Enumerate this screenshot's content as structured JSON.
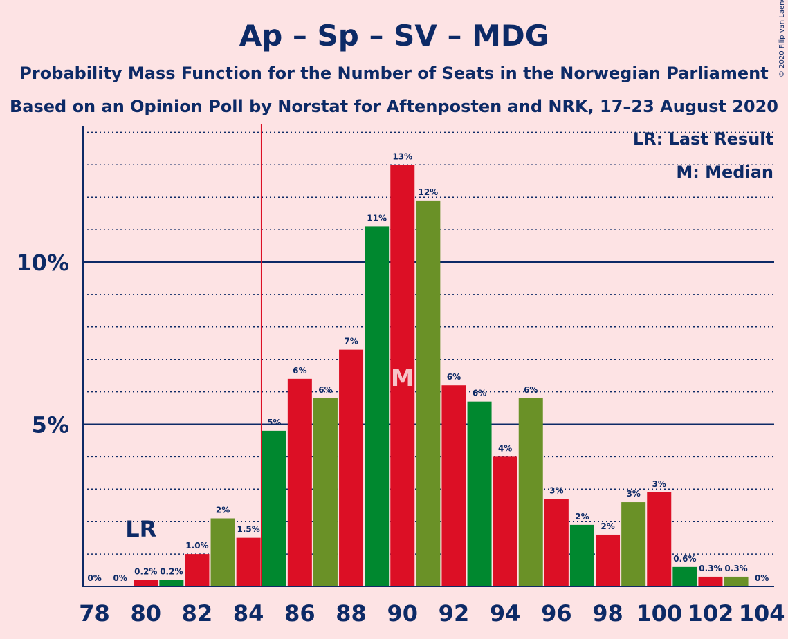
{
  "chart_data": {
    "type": "bar",
    "title": "Ap – Sp – SV – MDG",
    "subtitle1": "Probability Mass Function for the Number of Seats in the Norwegian Parliament",
    "subtitle2": "Based on an Opinion Poll by Norstat for Aftenposten and NRK, 17–23 August 2020",
    "copyright": "© 2020 Filip van Laenen",
    "legend": {
      "lr": "LR: Last Result",
      "median": "M: Median",
      "position": "top-right"
    },
    "last_result_label": "LR",
    "last_result_seat": 80,
    "median_label": "M",
    "median_seat": 90,
    "majority_line_seat": 85,
    "ylim": [
      0,
      14
    ],
    "yticks": [
      {
        "value": 5,
        "label": "5%"
      },
      {
        "value": 10,
        "label": "10%"
      }
    ],
    "xtick_labels": [
      "78",
      "80",
      "82",
      "84",
      "86",
      "88",
      "90",
      "92",
      "94",
      "96",
      "98",
      "100",
      "102",
      "104"
    ],
    "seats": [
      78,
      79,
      80,
      81,
      82,
      83,
      84,
      85,
      86,
      87,
      88,
      89,
      90,
      91,
      92,
      93,
      94,
      95,
      96,
      97,
      98,
      99,
      100,
      101,
      102,
      103,
      104
    ],
    "values": [
      0,
      0,
      0.2,
      0.2,
      1.0,
      2.1,
      1.5,
      4.8,
      6.4,
      5.8,
      7.3,
      11.1,
      13.0,
      11.9,
      6.2,
      5.7,
      4.0,
      5.8,
      2.7,
      1.9,
      1.6,
      2.6,
      2.9,
      0.6,
      0.3,
      0.3,
      0
    ],
    "labels": [
      "0%",
      "0%",
      "0.2%",
      "0.2%",
      "1.0%",
      "2%",
      "1.5%",
      "5%",
      "6%",
      "6%",
      "7%",
      "11%",
      "13%",
      "12%",
      "6%",
      "6%",
      "4%",
      "6%",
      "3%",
      "2%",
      "2%",
      "3%",
      "3%",
      "0.6%",
      "0.3%",
      "0.3%",
      "0%"
    ],
    "colors": [
      "#dc0f25",
      "#00882f",
      "#dc0f25",
      "#00882f",
      "#dc0f25",
      "#6a9127",
      "#dc0f25",
      "#00882f",
      "#dc0f25",
      "#6a9127",
      "#dc0f25",
      "#00882f",
      "#dc0f25",
      "#6a9127",
      "#dc0f25",
      "#00882f",
      "#dc0f25",
      "#6a9127",
      "#dc0f25",
      "#00882f",
      "#dc0f25",
      "#6a9127",
      "#dc0f25",
      "#00882f",
      "#dc0f25",
      "#6a9127",
      "#dc0f25"
    ],
    "grid": true
  },
  "colors": {
    "background": "#fde3e4",
    "text": "#0d2a66",
    "ap_red": "#dc0f25",
    "sv_green": "#00882f",
    "mdg_green": "#6a9127",
    "majority_line": "#dc0f25"
  }
}
